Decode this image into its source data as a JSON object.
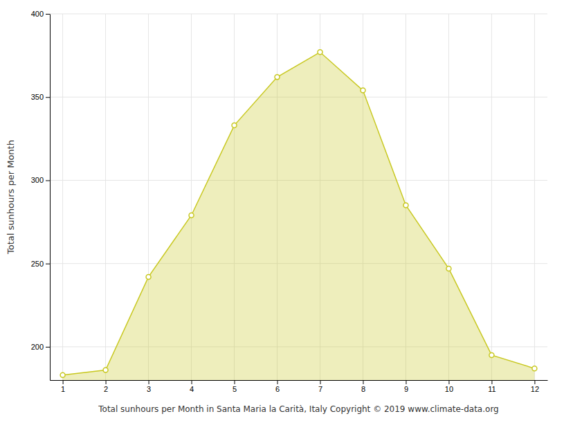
{
  "chart_data": {
    "type": "area",
    "xlabel": "Total sunhours per Month in Santa Maria la Carità, Italy Copyright © 2019 www.climate-data.org",
    "ylabel": "Total sunhours per Month",
    "x": [
      1,
      2,
      3,
      4,
      5,
      6,
      7,
      8,
      9,
      10,
      11,
      12
    ],
    "values": [
      183,
      186,
      242,
      279,
      333,
      362,
      377,
      354,
      285,
      247,
      195,
      187
    ],
    "color": "#c8c820",
    "marker": "circle",
    "xlim": [
      0.7,
      12.3
    ],
    "ylim": [
      180,
      400
    ],
    "xticks": [
      1,
      2,
      3,
      4,
      5,
      6,
      7,
      8,
      9,
      10,
      11,
      12
    ],
    "yticks": [
      200,
      250,
      300,
      350,
      400
    ],
    "grid": true
  }
}
